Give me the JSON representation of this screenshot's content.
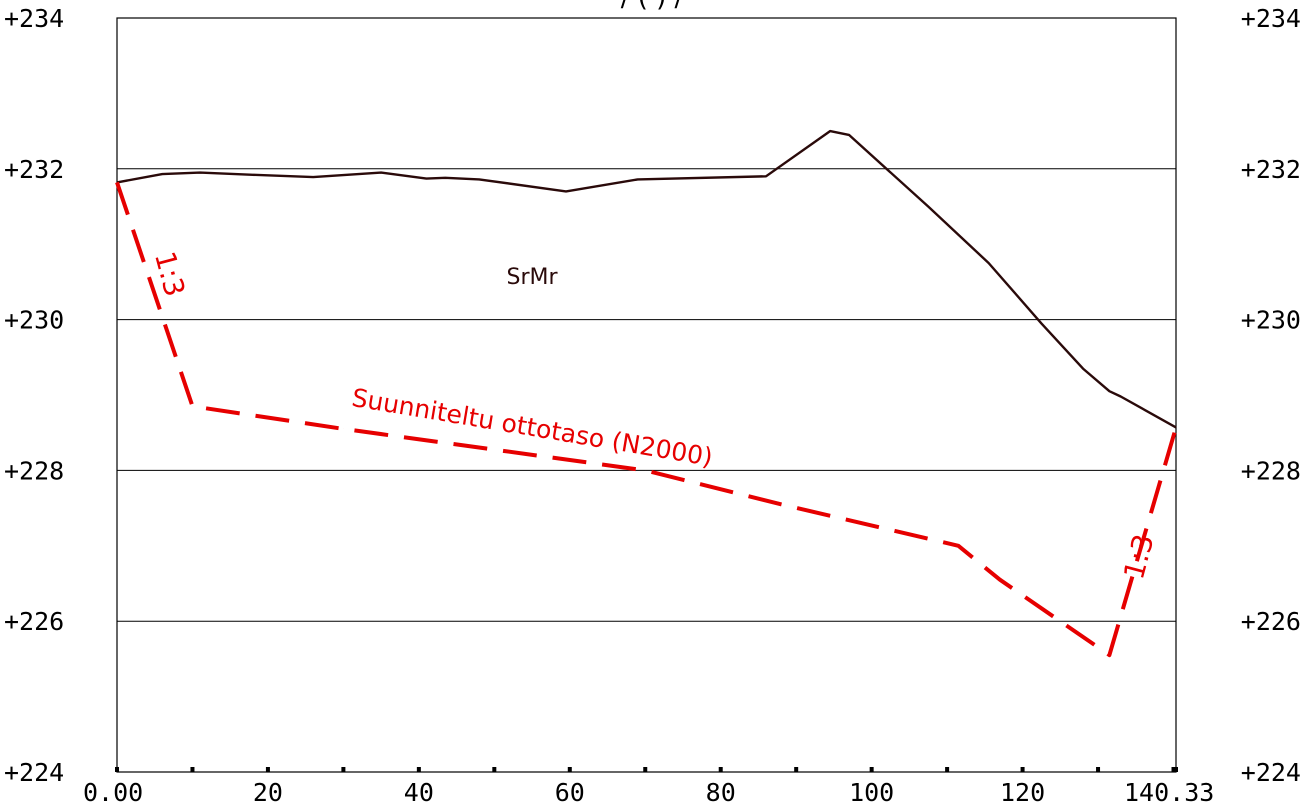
{
  "chart_data": {
    "type": "line",
    "title": "",
    "xlabel": "",
    "ylabel": "",
    "xlim": [
      0,
      140.33
    ],
    "ylim": [
      224,
      234
    ],
    "grid": true,
    "x_tick_values": [
      0,
      20,
      40,
      60,
      80,
      100,
      120,
      140.33
    ],
    "x_tick_labels": [
      "0.00",
      "20",
      "40",
      "60",
      "80",
      "100",
      "120",
      "140.33"
    ],
    "y_tick_values": [
      224,
      226,
      228,
      230,
      232,
      234
    ],
    "y_tick_labels": [
      "+224",
      "+226",
      "+228",
      "+230",
      "+232",
      "+234"
    ],
    "y_gridlines": [
      226,
      228,
      230,
      232
    ],
    "series": [
      {
        "style": "solid",
        "color": "#2a0a0a",
        "points": [
          [
            0,
            231.82
          ],
          [
            6,
            231.93
          ],
          [
            11,
            231.95
          ],
          [
            18,
            231.92
          ],
          [
            26,
            231.89
          ],
          [
            35,
            231.95
          ],
          [
            41,
            231.87
          ],
          [
            43.5,
            231.88
          ],
          [
            48,
            231.86
          ],
          [
            59.5,
            231.7
          ],
          [
            69,
            231.86
          ],
          [
            86,
            231.9
          ],
          [
            94.5,
            232.5
          ],
          [
            97,
            232.45
          ],
          [
            107.5,
            231.5
          ],
          [
            115.5,
            230.75
          ],
          [
            122.5,
            229.95
          ],
          [
            128,
            229.35
          ],
          [
            131.5,
            229.05
          ],
          [
            133,
            228.98
          ],
          [
            140.33,
            228.57
          ]
        ]
      },
      {
        "style": "dashed",
        "color": "#e60000",
        "points": [
          [
            0,
            231.82
          ],
          [
            10,
            228.85
          ],
          [
            30,
            228.55
          ],
          [
            70,
            228.0
          ],
          [
            88,
            227.55
          ],
          [
            111.5,
            227.0
          ],
          [
            117,
            226.55
          ],
          [
            131.5,
            225.55
          ],
          [
            140.33,
            228.57
          ]
        ]
      }
    ],
    "annotations": [
      {
        "text": "SrMr",
        "x": 55,
        "y": 230.55,
        "color": "#2a0a0a",
        "rotation": 0
      },
      {
        "text": "Suunniteltu ottotaso (N2000)",
        "x": 55,
        "y": 228.55,
        "color": "#e60000",
        "rotation": 9.5
      },
      {
        "text": "1:3",
        "x": 6.8,
        "y": 230.6,
        "color": "#e60000",
        "rotation": 75
      },
      {
        "text": "1:3",
        "x": 135.6,
        "y": 226.85,
        "color": "#e60000",
        "rotation": -75
      }
    ],
    "top_label_fragment": "/ ( ) /"
  }
}
